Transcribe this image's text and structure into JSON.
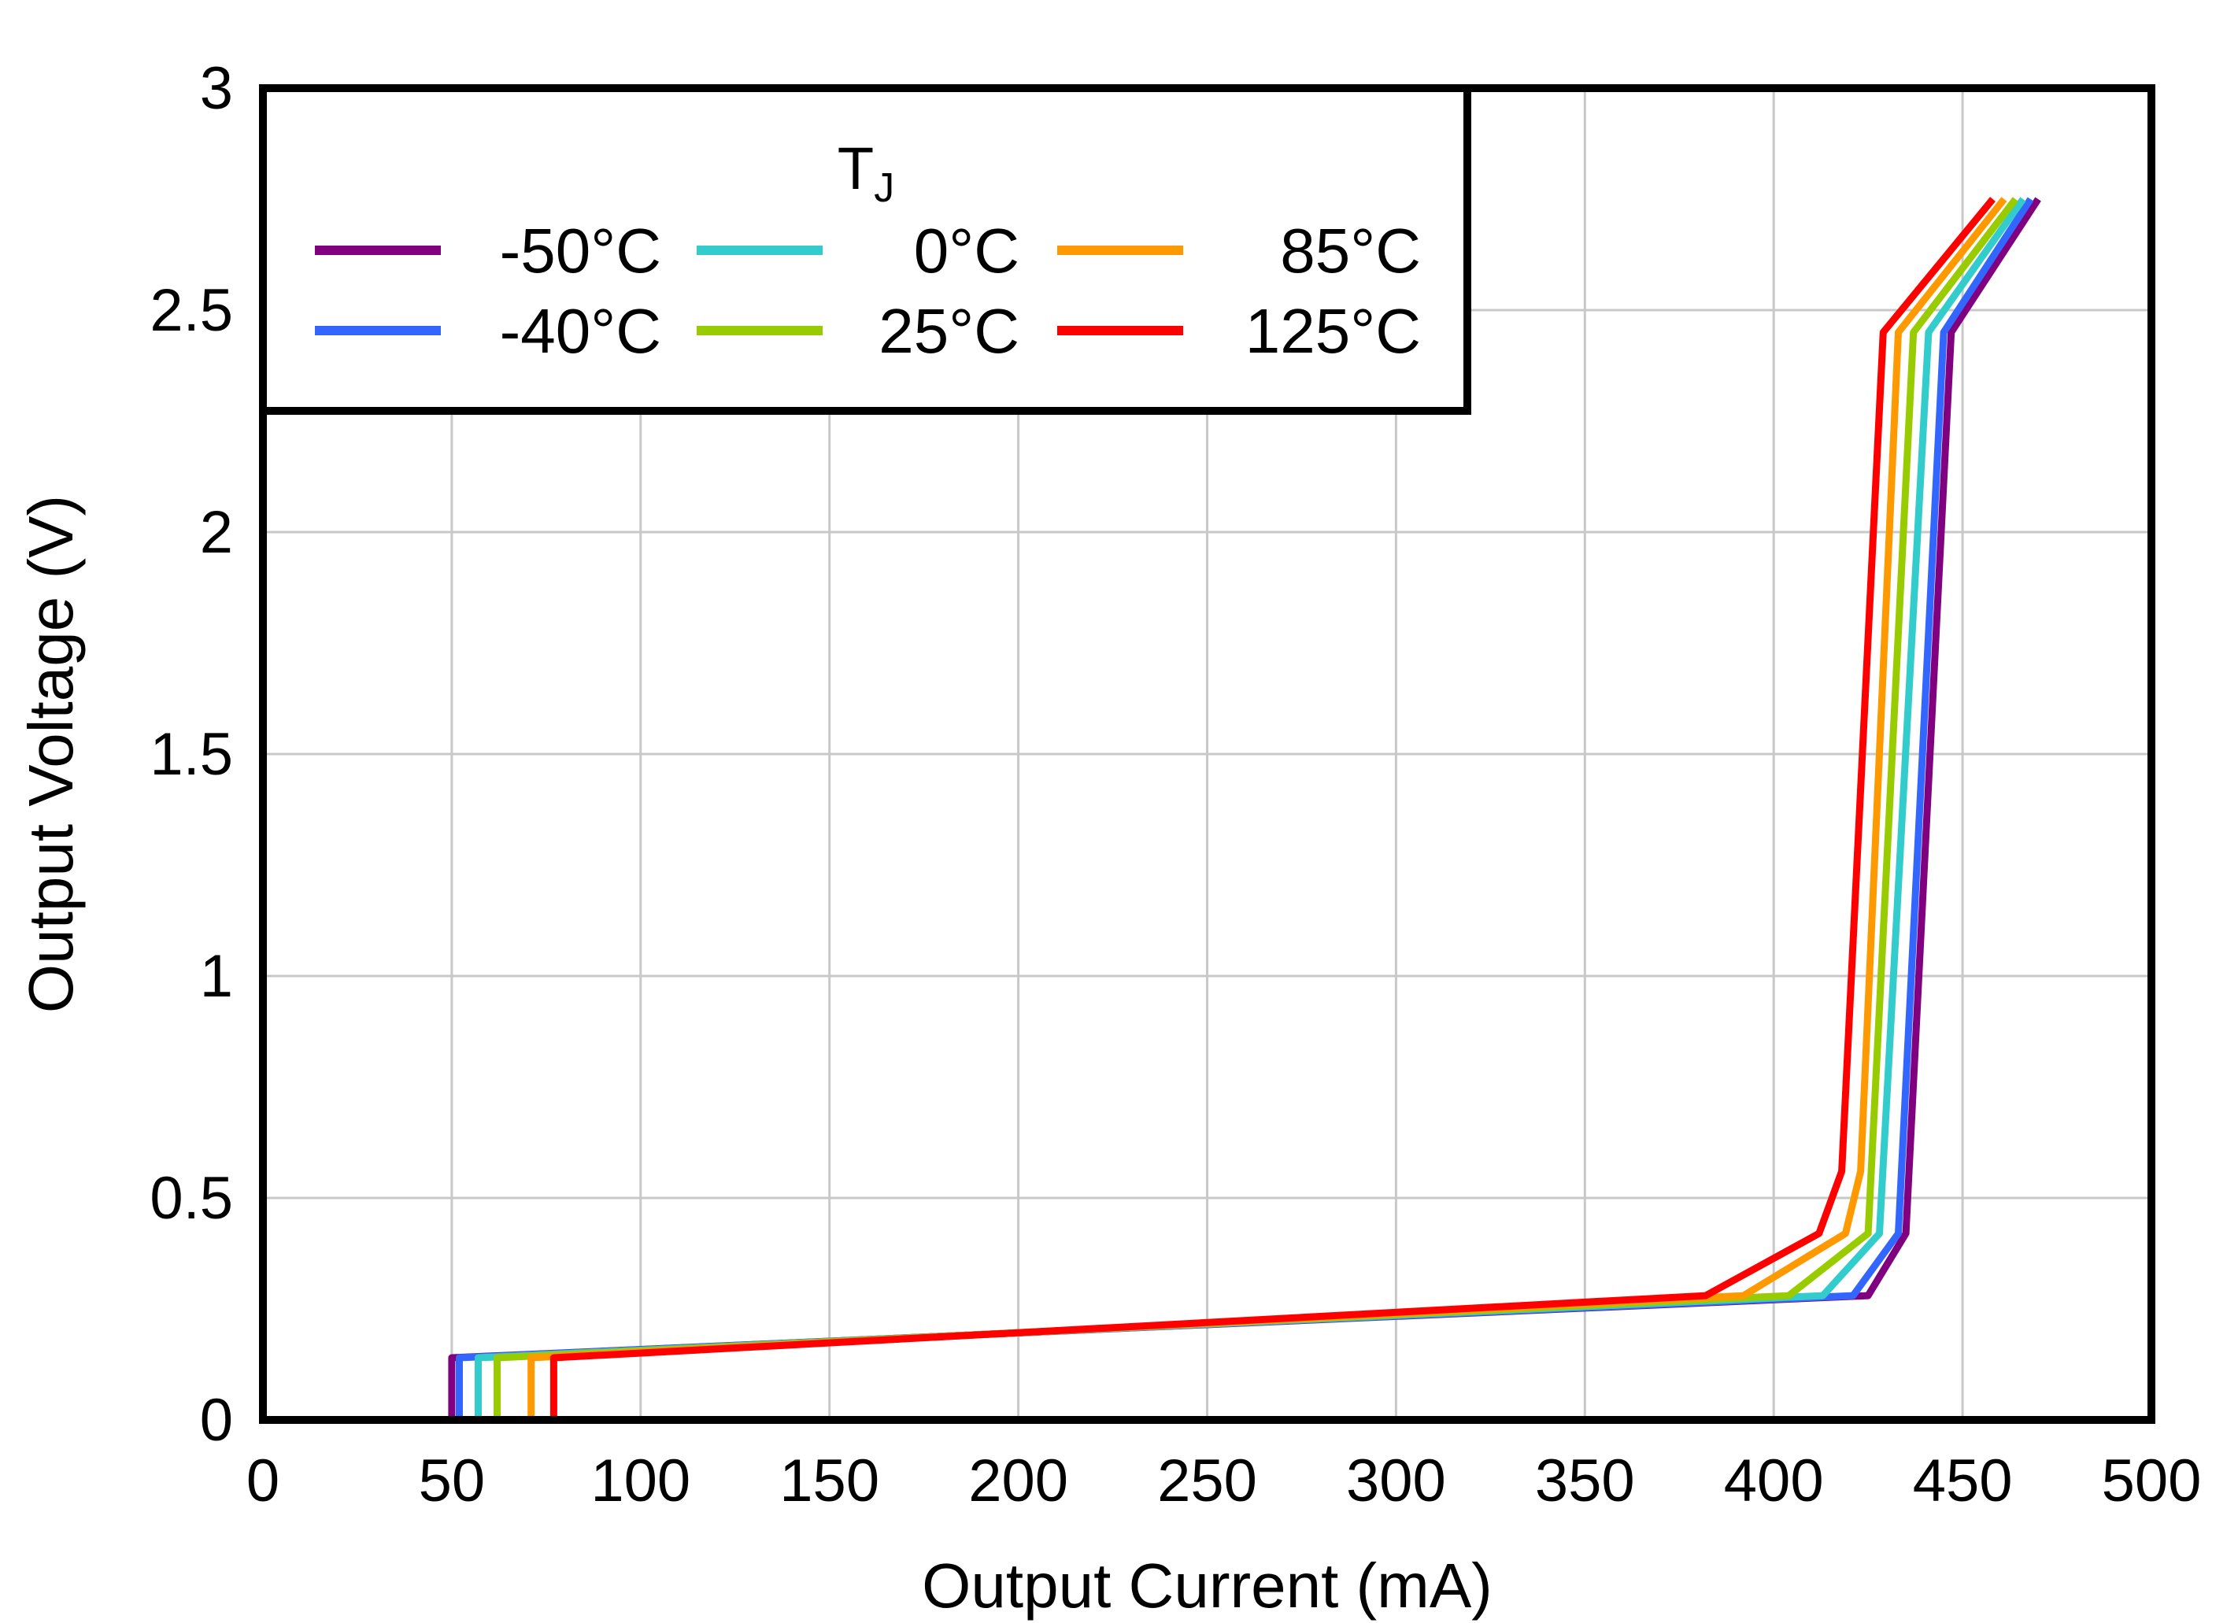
{
  "chart_data": {
    "type": "line",
    "title": "",
    "xlabel": "Output Current (mA)",
    "ylabel": "Output Voltage (V)",
    "xlim": [
      0,
      500
    ],
    "ylim": [
      0,
      3
    ],
    "xticks": [
      0,
      50,
      100,
      150,
      200,
      250,
      300,
      350,
      400,
      450,
      500
    ],
    "yticks": [
      0,
      0.5,
      1,
      1.5,
      2,
      2.5,
      3
    ],
    "xtick_labels": [
      "0",
      "50",
      "100",
      "150",
      "200",
      "250",
      "300",
      "350",
      "400",
      "450",
      "500"
    ],
    "ytick_labels": [
      "0",
      "0.5",
      "1",
      "1.5",
      "2",
      "2.5",
      "3"
    ],
    "grid": true,
    "legend": {
      "title_main": "T",
      "title_sub": "J",
      "placement": "top-left"
    },
    "series": [
      {
        "name": "-50°C",
        "color": "#800080",
        "x": [
          50,
          50,
          425,
          435,
          447,
          470
        ],
        "y": [
          0,
          0.14,
          0.28,
          0.42,
          2.45,
          2.75
        ]
      },
      {
        "name": "-40°C",
        "color": "#3366ff",
        "x": [
          52,
          52,
          421,
          433,
          445,
          468
        ],
        "y": [
          0,
          0.14,
          0.28,
          0.42,
          2.45,
          2.75
        ]
      },
      {
        "name": "0°C",
        "color": "#33cccc",
        "x": [
          57,
          57,
          413,
          428,
          441,
          466
        ],
        "y": [
          0,
          0.14,
          0.28,
          0.42,
          2.45,
          2.75
        ]
      },
      {
        "name": "25°C",
        "color": "#99cc00",
        "x": [
          62,
          62,
          404,
          425,
          437,
          464
        ],
        "y": [
          0,
          0.14,
          0.28,
          0.42,
          2.45,
          2.75
        ]
      },
      {
        "name": "85°C",
        "color": "#ff9900",
        "x": [
          71,
          71,
          392,
          419,
          423,
          433,
          461
        ],
        "y": [
          0,
          0.14,
          0.28,
          0.42,
          0.56,
          2.45,
          2.75
        ]
      },
      {
        "name": "125°C",
        "color": "#ff0000",
        "x": [
          77,
          77,
          382,
          412,
          418,
          429,
          458
        ],
        "y": [
          0,
          0.14,
          0.28,
          0.42,
          0.56,
          2.45,
          2.75
        ]
      }
    ]
  }
}
